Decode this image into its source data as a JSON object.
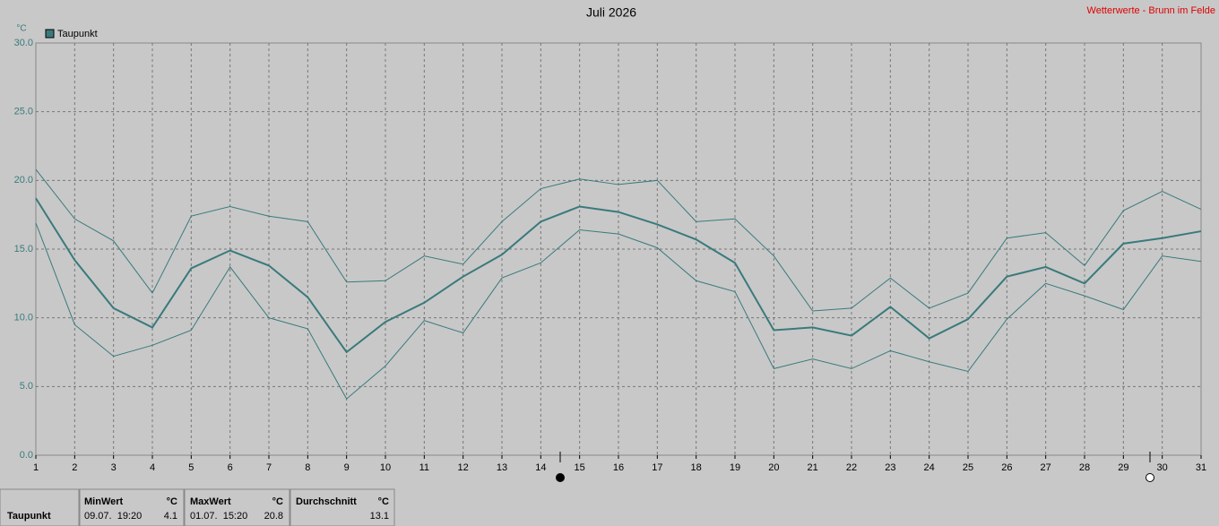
{
  "chart_data": {
    "type": "line",
    "title": "Juli 2026",
    "subtitle": "Wetterwerte - Brunn im Felde",
    "y_label": "°C",
    "categories": [
      "1",
      "2",
      "3",
      "4",
      "5",
      "6",
      "7",
      "8",
      "9",
      "10",
      "11",
      "12",
      "13",
      "14",
      "15",
      "16",
      "17",
      "18",
      "19",
      "20",
      "21",
      "22",
      "23",
      "24",
      "25",
      "26",
      "27",
      "28",
      "29",
      "30",
      "31"
    ],
    "series": [
      {
        "name": "Taupunkt",
        "color": "#3a7a7c",
        "width": 2,
        "values": [
          18.7,
          14.2,
          10.7,
          9.3,
          13.6,
          14.9,
          13.8,
          11.5,
          7.5,
          9.7,
          11.1,
          13.0,
          14.6,
          17.0,
          18.1,
          17.7,
          16.8,
          15.7,
          14.0,
          9.1,
          9.3,
          8.7,
          10.8,
          8.5,
          9.9,
          13.0,
          13.7,
          12.5,
          15.4,
          15.8,
          16.3
        ]
      },
      {
        "color": "#3a7a7c",
        "width": 1,
        "values": [
          20.8,
          17.2,
          15.6,
          11.8,
          17.4,
          18.1,
          17.4,
          17.0,
          12.6,
          12.7,
          14.5,
          13.9,
          17.0,
          19.4,
          20.1,
          19.7,
          20.0,
          17.0,
          17.2,
          14.5,
          10.5,
          10.7,
          12.9,
          10.7,
          11.8,
          15.8,
          16.2,
          13.8,
          17.8,
          19.2,
          17.9
        ]
      },
      {
        "color": "#3a7a7c",
        "width": 1,
        "values": [
          16.9,
          9.5,
          7.2,
          8.0,
          9.1,
          13.7,
          10.0,
          9.2,
          4.1,
          6.5,
          9.8,
          8.9,
          12.9,
          14.0,
          16.4,
          16.1,
          15.1,
          12.7,
          11.9,
          6.3,
          7.0,
          6.3,
          7.6,
          6.8,
          6.1,
          9.9,
          12.5,
          11.6,
          10.6,
          14.5,
          14.1
        ]
      }
    ],
    "ylim": [
      0,
      30
    ],
    "yticks": [
      {
        "value": 0,
        "label": "0.0"
      },
      {
        "value": 5,
        "label": "5.0"
      },
      {
        "value": 10,
        "label": "10.0"
      },
      {
        "value": 15,
        "label": "15.0"
      },
      {
        "value": 20,
        "label": "20.0"
      },
      {
        "value": 25,
        "label": "25.0"
      },
      {
        "value": 30,
        "label": "30.0"
      }
    ],
    "grid": true
  },
  "stats": {
    "row_label": "Taupunkt",
    "min": {
      "header": "MinWert",
      "unit": "°C",
      "time": "09.07.  19:20",
      "value": 4.1
    },
    "max": {
      "header": "MaxWert",
      "unit": "°C",
      "time": "01.07.  15:20",
      "value": 20.8
    },
    "avg": {
      "header": "Durchschnitt",
      "unit": "°C",
      "value": 13.1
    }
  }
}
